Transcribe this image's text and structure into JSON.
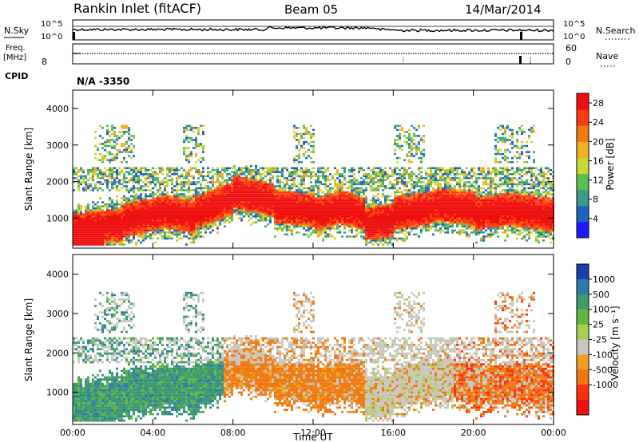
{
  "header": {
    "title": "Rankin Inlet (fitACF)",
    "beam": "Beam 05",
    "date": "14/Mar/2014"
  },
  "top_panels": {
    "nsky_label": "N.Sky",
    "nsky_ticks": [
      "10^5",
      "10^0"
    ],
    "nsearch_label": "N.Search",
    "nsearch_ticks": [
      "10^5",
      "10^0"
    ],
    "freq_label_1": "Freq.",
    "freq_label_2": "[MHz]",
    "freq_ticks_left": [
      "8"
    ],
    "freq_ticks_right": [
      "60",
      "0"
    ],
    "nave_label": "Nave",
    "cpid_label": "CPID",
    "cpid_value": "N/A -3350"
  },
  "chart_data": [
    {
      "type": "heatmap",
      "name": "power",
      "ylabel": "Slant Range [km]",
      "xlabel": "Time UT",
      "x_ticks": [
        "00:00",
        "04:00",
        "08:00",
        "12:00",
        "16:00",
        "20:00",
        "00:00"
      ],
      "xlim_hours": [
        0,
        24
      ],
      "y_ticks": [
        1000,
        2000,
        3000,
        4000
      ],
      "ylim": [
        180,
        4500
      ],
      "colorbar_label": "Power [dB]",
      "colorbar_ticks": [
        4,
        8,
        12,
        16,
        20,
        24,
        28
      ],
      "colorbar_range": [
        0,
        30
      ],
      "colors": [
        "#1a1aff",
        "#2060c0",
        "#3b9a8a",
        "#5bbf50",
        "#c8d832",
        "#f0b020",
        "#f27a10",
        "#ff3a10",
        "#ee1010"
      ]
    },
    {
      "type": "heatmap",
      "name": "velocity",
      "ylabel": "Slant Range [km]",
      "xlabel": "Time UT",
      "x_ticks": [
        "00:00",
        "04:00",
        "08:00",
        "12:00",
        "16:00",
        "20:00",
        "00:00"
      ],
      "xlim_hours": [
        0,
        24
      ],
      "y_ticks": [
        1000,
        2000,
        3000,
        4000
      ],
      "ylim": [
        180,
        4500
      ],
      "colorbar_label": "Velocity [m s⁻¹]",
      "colorbar_ticks": [
        1000,
        500,
        100,
        25,
        -25,
        -100,
        -500,
        -1000
      ],
      "colors": [
        "#1a3fb0",
        "#2e7ab0",
        "#3d9a6a",
        "#60b840",
        "#a8d050",
        "#c8c8c0",
        "#f0a020",
        "#f07810",
        "#ff3010",
        "#ee1010"
      ]
    }
  ]
}
